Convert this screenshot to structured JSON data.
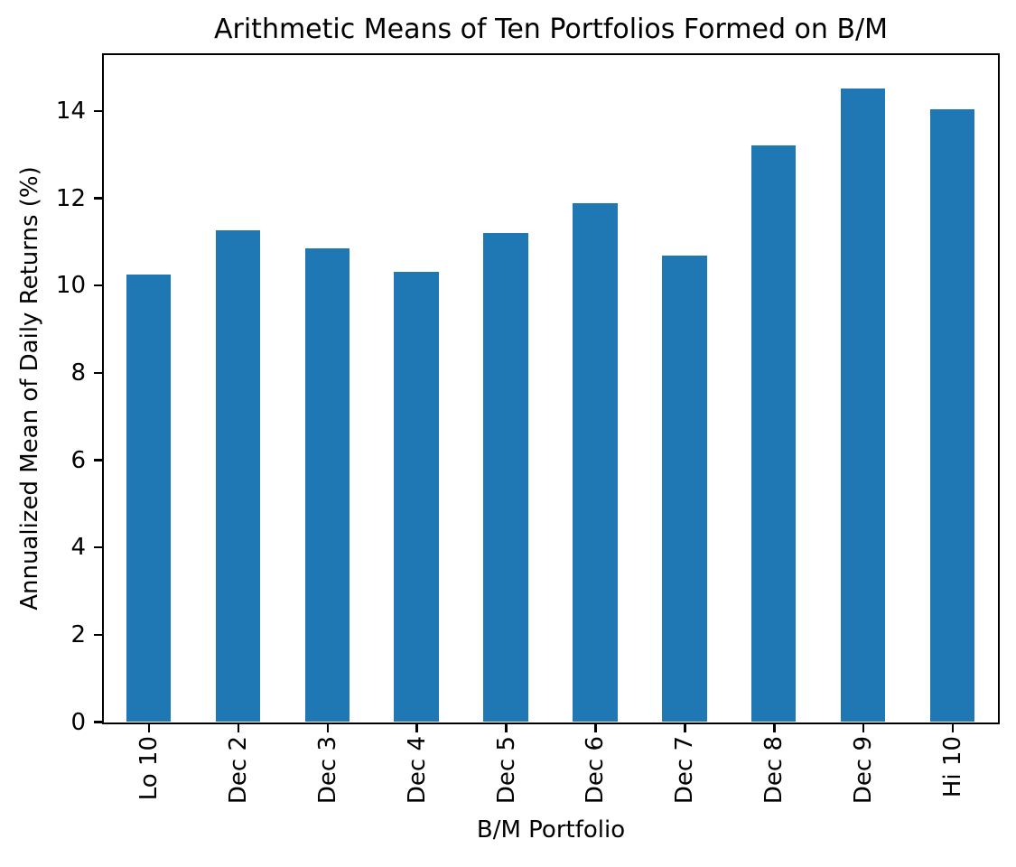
{
  "chart_data": {
    "type": "bar",
    "title": "Arithmetic Means of Ten Portfolios Formed on B/M",
    "xlabel": "B/M Portfolio",
    "ylabel": "Annualized Mean of Daily Returns (%)",
    "categories": [
      "Lo 10",
      "Dec 2",
      "Dec 3",
      "Dec 4",
      "Dec 5",
      "Dec 6",
      "Dec 7",
      "Dec 8",
      "Dec 9",
      "Hi 10"
    ],
    "values": [
      10.25,
      11.26,
      10.85,
      10.31,
      11.19,
      11.88,
      10.68,
      13.21,
      14.5,
      14.03
    ],
    "ylim": [
      0,
      15.27
    ],
    "yticks": [
      0,
      2,
      4,
      6,
      8,
      10,
      12,
      14
    ],
    "ytick_labels": [
      "0",
      "2",
      "4",
      "6",
      "8",
      "10",
      "12",
      "14"
    ],
    "xtick_rotation": 90,
    "bar_color": "#1f77b4",
    "bar_width_fraction": 0.5,
    "grid": false,
    "legend_position": "none",
    "text_color": "#000000",
    "background_color": "#ffffff"
  }
}
